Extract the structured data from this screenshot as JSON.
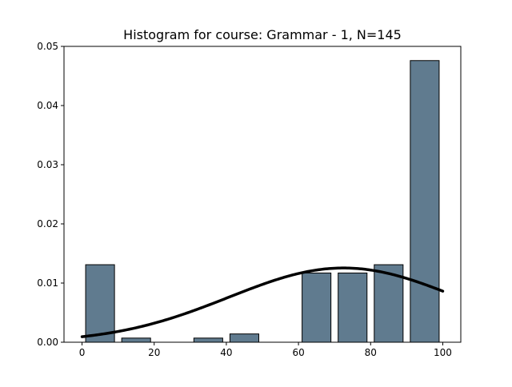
{
  "chart_data": {
    "type": "bar",
    "title": "Histogram for course: Grammar - 1,  N=145",
    "xlabel": "",
    "ylabel": "",
    "xlim": [
      -5,
      105
    ],
    "ylim": [
      0,
      0.05
    ],
    "xticks": [
      0,
      20,
      40,
      60,
      80,
      100
    ],
    "xtick_labels": [
      "0",
      "20",
      "40",
      "60",
      "80",
      "100"
    ],
    "yticks": [
      0,
      0.01,
      0.02,
      0.03,
      0.04,
      0.05
    ],
    "ytick_labels": [
      "0.00",
      "0.01",
      "0.02",
      "0.03",
      "0.04",
      "0.05"
    ],
    "grid": false,
    "bins": [
      {
        "start": 0,
        "end": 10,
        "density": 0.0131
      },
      {
        "start": 10,
        "end": 20,
        "density": 0.0007
      },
      {
        "start": 20,
        "end": 30,
        "density": 0.0
      },
      {
        "start": 30,
        "end": 40,
        "density": 0.0007
      },
      {
        "start": 40,
        "end": 50,
        "density": 0.0014
      },
      {
        "start": 50,
        "end": 60,
        "density": 0.0
      },
      {
        "start": 60,
        "end": 70,
        "density": 0.0117
      },
      {
        "start": 70,
        "end": 80,
        "density": 0.0117
      },
      {
        "start": 80,
        "end": 90,
        "density": 0.0131
      },
      {
        "start": 90,
        "end": 100,
        "density": 0.0476
      }
    ],
    "bar_color": "#607b8f",
    "bar_edge_color": "#000000",
    "curve": {
      "type": "normal",
      "mean": 72.5,
      "std": 31.8,
      "x_range": [
        0,
        100
      ],
      "color": "#000000"
    }
  }
}
